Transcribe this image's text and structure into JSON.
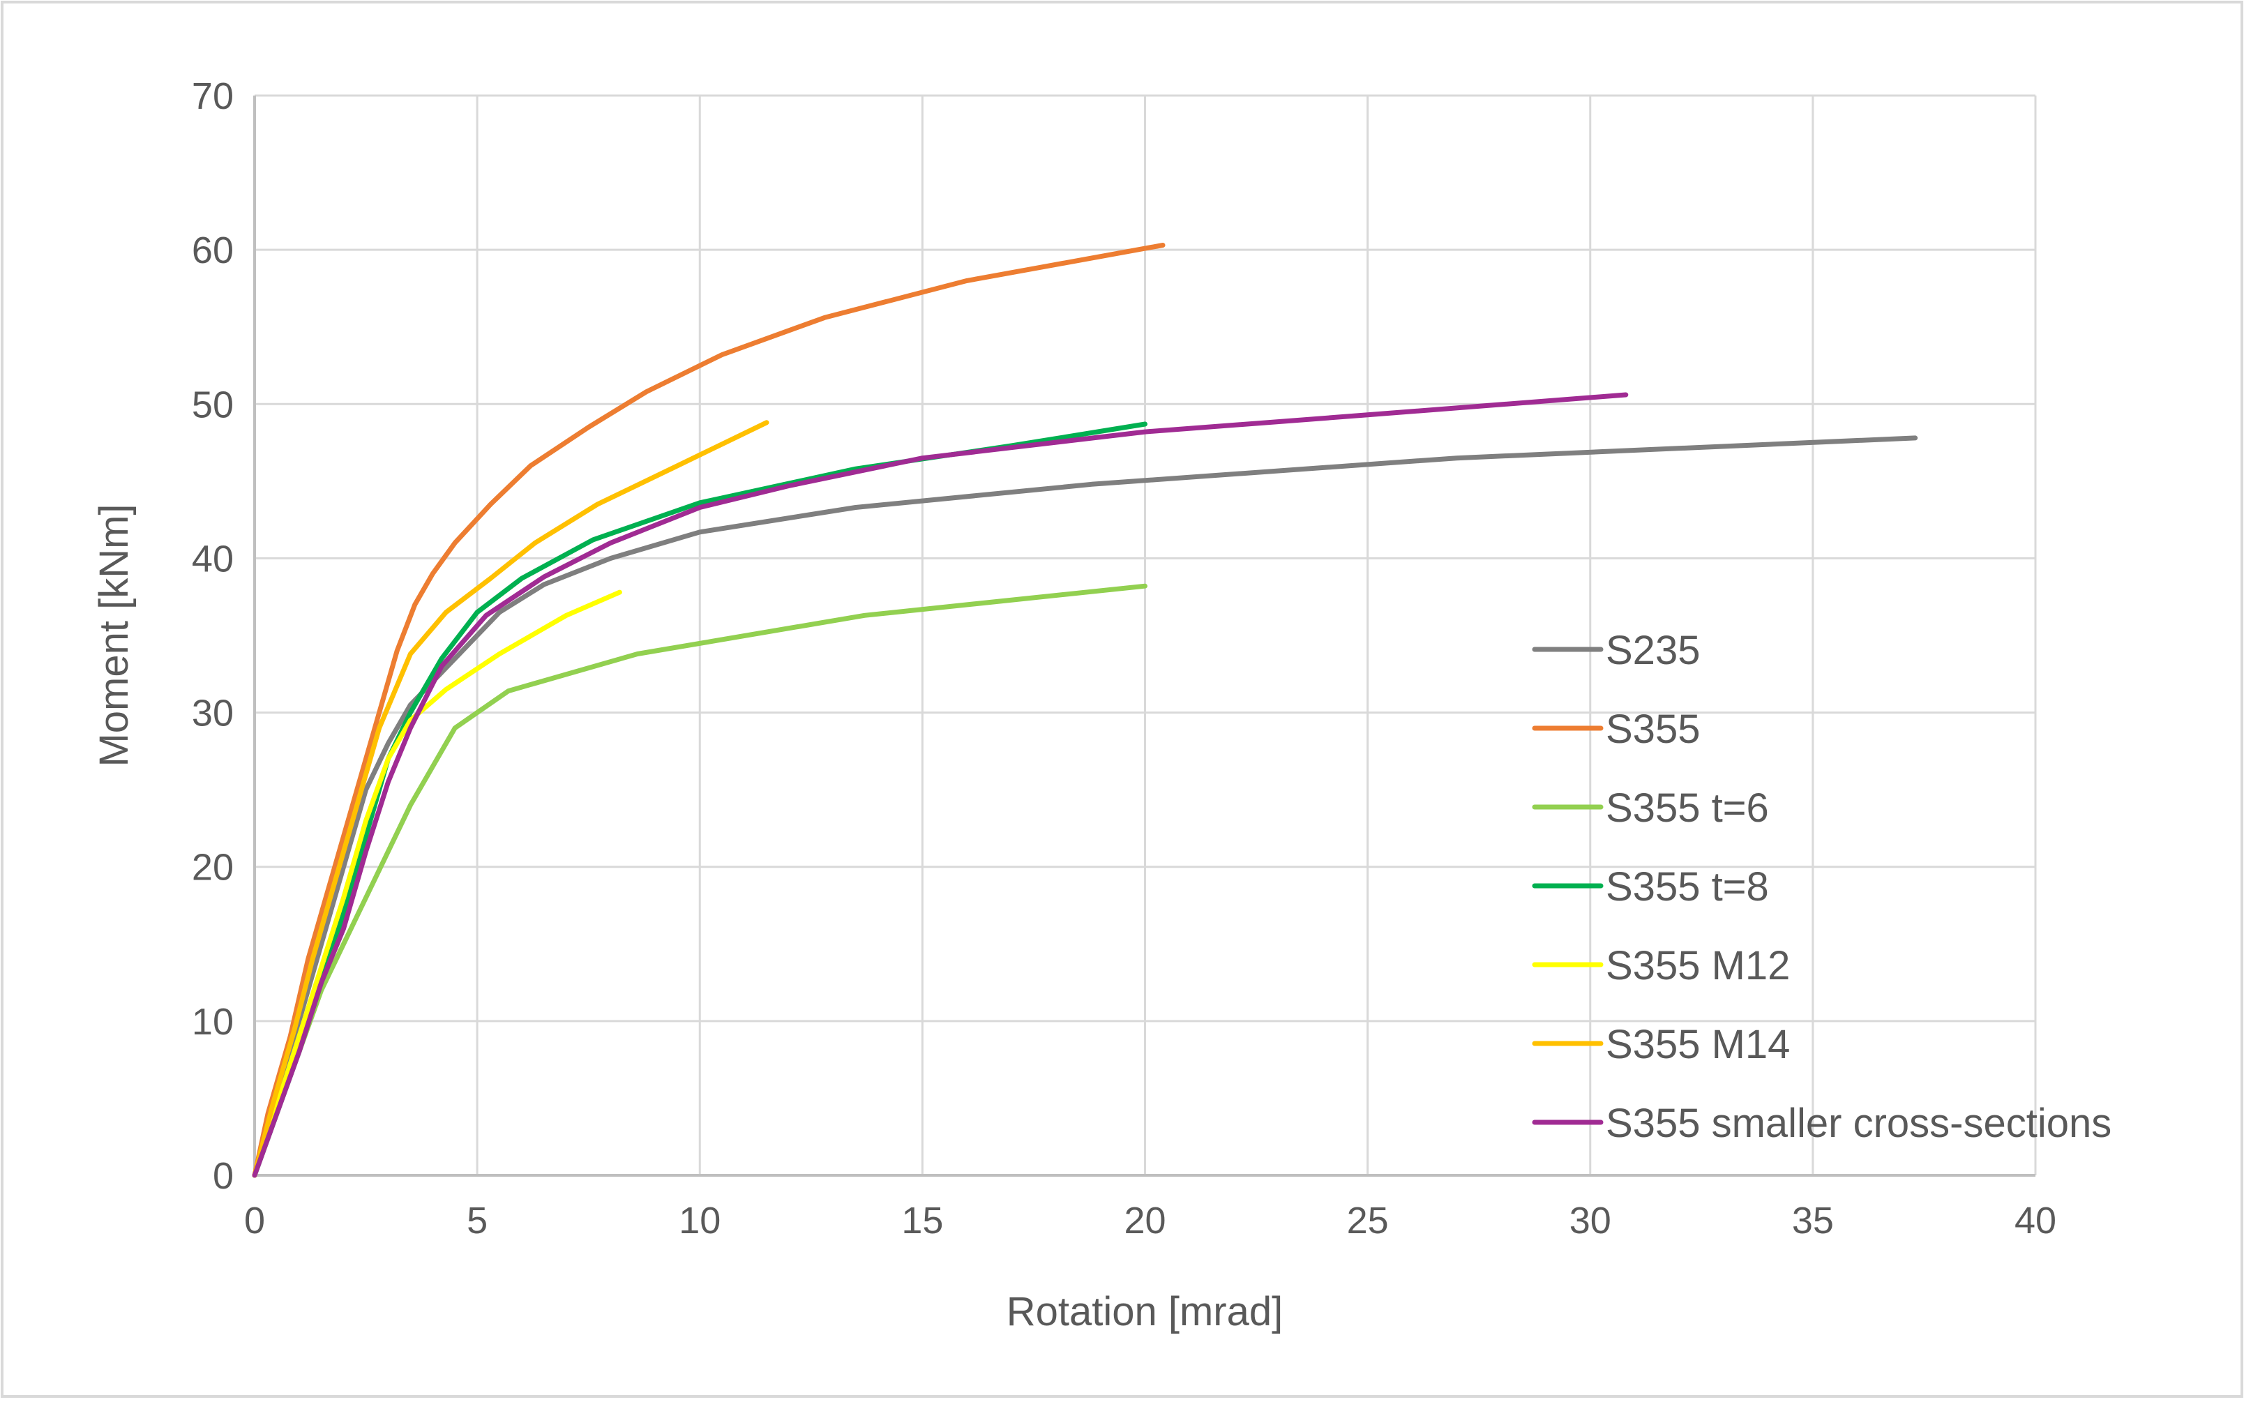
{
  "chart_data": {
    "type": "line",
    "title": "",
    "xlabel": "Rotation [mrad]",
    "ylabel": "Moment [kNm]",
    "xlim": [
      0,
      40
    ],
    "ylim": [
      0,
      70
    ],
    "xticks": [
      0,
      5,
      10,
      15,
      20,
      25,
      30,
      35,
      40
    ],
    "yticks": [
      0,
      10,
      20,
      30,
      40,
      50,
      60,
      70
    ],
    "grid": true,
    "legend_position": "right-bottom inside",
    "series": [
      {
        "name": "S235",
        "color": "#7f7f7f",
        "points": [
          [
            0,
            0
          ],
          [
            0.4,
            4
          ],
          [
            0.8,
            8
          ],
          [
            1.2,
            12
          ],
          [
            1.6,
            16
          ],
          [
            2,
            20
          ],
          [
            2.5,
            25
          ],
          [
            3,
            28
          ],
          [
            3.5,
            30.5
          ],
          [
            4.5,
            33.5
          ],
          [
            5.5,
            36.5
          ],
          [
            6.5,
            38.3
          ],
          [
            8,
            40
          ],
          [
            10,
            41.7
          ],
          [
            13.5,
            43.3
          ],
          [
            18.8,
            44.8
          ],
          [
            27,
            46.5
          ],
          [
            37.3,
            47.8
          ]
        ]
      },
      {
        "name": "S355",
        "color": "#ed7d31",
        "points": [
          [
            0,
            0
          ],
          [
            0.3,
            4
          ],
          [
            0.8,
            9
          ],
          [
            1.2,
            14
          ],
          [
            1.7,
            19
          ],
          [
            2.2,
            24
          ],
          [
            2.7,
            29
          ],
          [
            3.2,
            34
          ],
          [
            3.6,
            37
          ],
          [
            4,
            39
          ],
          [
            4.5,
            41
          ],
          [
            5.3,
            43.5
          ],
          [
            6.2,
            46
          ],
          [
            7.5,
            48.5
          ],
          [
            8.8,
            50.8
          ],
          [
            10.5,
            53.2
          ],
          [
            12.8,
            55.6
          ],
          [
            16,
            58
          ],
          [
            20.4,
            60.3
          ]
        ]
      },
      {
        "name": "S355 t=6",
        "color": "#92d050",
        "points": [
          [
            0,
            0
          ],
          [
            0.5,
            5
          ],
          [
            1,
            8
          ],
          [
            1.5,
            12
          ],
          [
            2,
            15
          ],
          [
            2.5,
            18
          ],
          [
            3,
            21
          ],
          [
            3.5,
            24
          ],
          [
            4,
            26.5
          ],
          [
            4.5,
            29
          ],
          [
            5.7,
            31.4
          ],
          [
            8.6,
            33.8
          ],
          [
            13.7,
            36.3
          ],
          [
            20,
            38.2
          ]
        ]
      },
      {
        "name": "S355 t=8",
        "color": "#00b050",
        "points": [
          [
            0,
            0
          ],
          [
            0.5,
            4
          ],
          [
            1,
            8
          ],
          [
            1.5,
            12.5
          ],
          [
            2,
            17
          ],
          [
            2.5,
            22
          ],
          [
            3,
            27
          ],
          [
            3.5,
            30
          ],
          [
            4.2,
            33.5
          ],
          [
            5,
            36.5
          ],
          [
            6,
            38.7
          ],
          [
            7.6,
            41.2
          ],
          [
            10,
            43.6
          ],
          [
            13.5,
            45.8
          ],
          [
            17,
            47.3
          ],
          [
            20,
            48.7
          ]
        ]
      },
      {
        "name": "S355 M12",
        "color": "#ffff00",
        "points": [
          [
            0,
            0
          ],
          [
            0.5,
            4.5
          ],
          [
            1,
            9
          ],
          [
            1.5,
            13.5
          ],
          [
            2,
            18
          ],
          [
            2.5,
            23
          ],
          [
            3,
            27
          ],
          [
            3.5,
            29.5
          ],
          [
            4.3,
            31.5
          ],
          [
            5.5,
            33.8
          ],
          [
            7,
            36.3
          ],
          [
            8.2,
            37.8
          ]
        ]
      },
      {
        "name": "S355 M14",
        "color": "#ffc000",
        "points": [
          [
            0,
            0
          ],
          [
            0.4,
            4.5
          ],
          [
            0.9,
            9.5
          ],
          [
            1.3,
            14
          ],
          [
            1.8,
            19
          ],
          [
            2.3,
            24
          ],
          [
            2.8,
            29
          ],
          [
            3.5,
            33.8
          ],
          [
            4.3,
            36.5
          ],
          [
            5.3,
            38.7
          ],
          [
            6.3,
            41
          ],
          [
            7.7,
            43.5
          ],
          [
            9.5,
            46
          ],
          [
            11.5,
            48.8
          ]
        ]
      },
      {
        "name": "S355 smaller cross-sections",
        "color": "#a02b93",
        "points": [
          [
            0,
            0
          ],
          [
            0.5,
            4
          ],
          [
            1,
            8
          ],
          [
            1.5,
            12.5
          ],
          [
            2,
            16
          ],
          [
            2.5,
            21
          ],
          [
            3,
            25.5
          ],
          [
            3.5,
            29
          ],
          [
            4.2,
            33
          ],
          [
            5.2,
            36.3
          ],
          [
            6.5,
            38.8
          ],
          [
            8,
            41
          ],
          [
            10,
            43.3
          ],
          [
            12,
            44.7
          ],
          [
            15,
            46.5
          ],
          [
            20,
            48.2
          ],
          [
            25,
            49.3
          ],
          [
            30.8,
            50.6
          ]
        ]
      }
    ]
  }
}
